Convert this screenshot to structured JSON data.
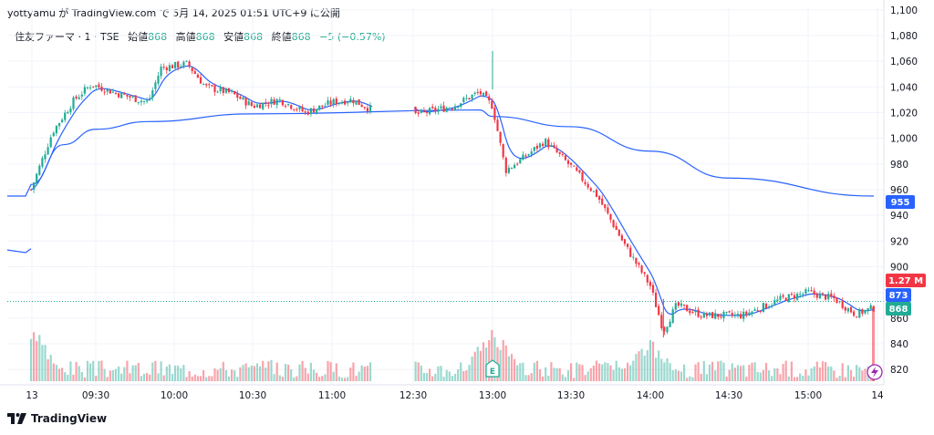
{
  "header": {
    "title": "yottyamu が TradingView.com で 5月 14, 2025 01:51 UTC+9 に公開"
  },
  "legend": {
    "symbol": "住友ファーマ · 1 · TSE",
    "open_label": "始値",
    "open": "868",
    "high_label": "高値",
    "high": "868",
    "low_label": "安値",
    "low": "868",
    "close_label": "終値",
    "close": "868",
    "change": "−5 (−0.57%)"
  },
  "footer": {
    "brand": "TradingView",
    "logo_icon": "tradingview-logo-icon"
  },
  "colors": {
    "up": "#22ab94",
    "down": "#f23645",
    "vwap": "#2962ff",
    "ema": "#2962ff",
    "grid": "#f0f3fa"
  },
  "badges": {
    "vwap_price": "955",
    "volume": "1.27 M",
    "prev_close": "873",
    "last_price": "868",
    "earnings": "E",
    "flash_icon": "lightning-icon"
  },
  "chart_data": {
    "type": "candlestick",
    "interval_minutes": 1,
    "x_ticks": [
      "13",
      "09:30",
      "10:00",
      "10:30",
      "11:00",
      "12:30",
      "13:00",
      "13:30",
      "14:00",
      "14:30",
      "15:00",
      "14"
    ],
    "y_ticks": [
      820,
      840,
      860,
      880,
      900,
      920,
      940,
      960,
      980,
      1000,
      1020,
      1040,
      1060,
      1080,
      1100
    ],
    "ylim": [
      808,
      1102
    ],
    "close_path": [
      {
        "t": "prev",
        "price": 912
      },
      {
        "t": "09:00",
        "price": 960
      },
      {
        "t": "09:10",
        "price": 1005
      },
      {
        "t": "09:20",
        "price": 1030
      },
      {
        "t": "09:28",
        "price": 1042
      },
      {
        "t": "09:38",
        "price": 1035
      },
      {
        "t": "09:50",
        "price": 1028
      },
      {
        "t": "09:55",
        "price": 1055
      },
      {
        "t": "10:05",
        "price": 1058
      },
      {
        "t": "10:12",
        "price": 1040
      },
      {
        "t": "10:22",
        "price": 1035
      },
      {
        "t": "10:30",
        "price": 1025
      },
      {
        "t": "10:40",
        "price": 1030
      },
      {
        "t": "10:50",
        "price": 1020
      },
      {
        "t": "11:00",
        "price": 1028
      },
      {
        "t": "11:15",
        "price": 1030
      },
      {
        "t": "11:30",
        "price": 1022
      },
      {
        "t": "12:30",
        "price": 1018
      },
      {
        "t": "12:45",
        "price": 1025
      },
      {
        "t": "12:55",
        "price": 1036
      },
      {
        "t": "13:00",
        "price": 1025
      },
      {
        "t": "13:05",
        "price": 975
      },
      {
        "t": "13:12",
        "price": 985
      },
      {
        "t": "13:20",
        "price": 998
      },
      {
        "t": "13:30",
        "price": 978
      },
      {
        "t": "13:40",
        "price": 955
      },
      {
        "t": "13:50",
        "price": 918
      },
      {
        "t": "14:00",
        "price": 885
      },
      {
        "t": "14:05",
        "price": 850
      },
      {
        "t": "14:10",
        "price": 870
      },
      {
        "t": "14:20",
        "price": 862
      },
      {
        "t": "14:35",
        "price": 862
      },
      {
        "t": "14:50",
        "price": 875
      },
      {
        "t": "15:00",
        "price": 880
      },
      {
        "t": "15:10",
        "price": 875
      },
      {
        "t": "15:18",
        "price": 863
      },
      {
        "t": "15:25",
        "price": 868
      }
    ],
    "vwap_path": [
      {
        "t": "prev",
        "price": 955
      },
      {
        "t": "09:00",
        "price": 964
      },
      {
        "t": "09:15",
        "price": 995
      },
      {
        "t": "09:30",
        "price": 1007
      },
      {
        "t": "09:50",
        "price": 1013
      },
      {
        "t": "10:30",
        "price": 1019
      },
      {
        "t": "12:55",
        "price": 1022
      },
      {
        "t": "13:00",
        "price": 1017
      },
      {
        "t": "13:30",
        "price": 1009
      },
      {
        "t": "14:00",
        "price": 990
      },
      {
        "t": "14:30",
        "price": 969
      },
      {
        "t": "15:25",
        "price": 955
      }
    ],
    "volume_spikes": [
      {
        "t": "09:00",
        "level": 0.75
      },
      {
        "t": "13:00",
        "level": 0.72
      },
      {
        "t": "14:00",
        "level": 0.55
      }
    ]
  }
}
